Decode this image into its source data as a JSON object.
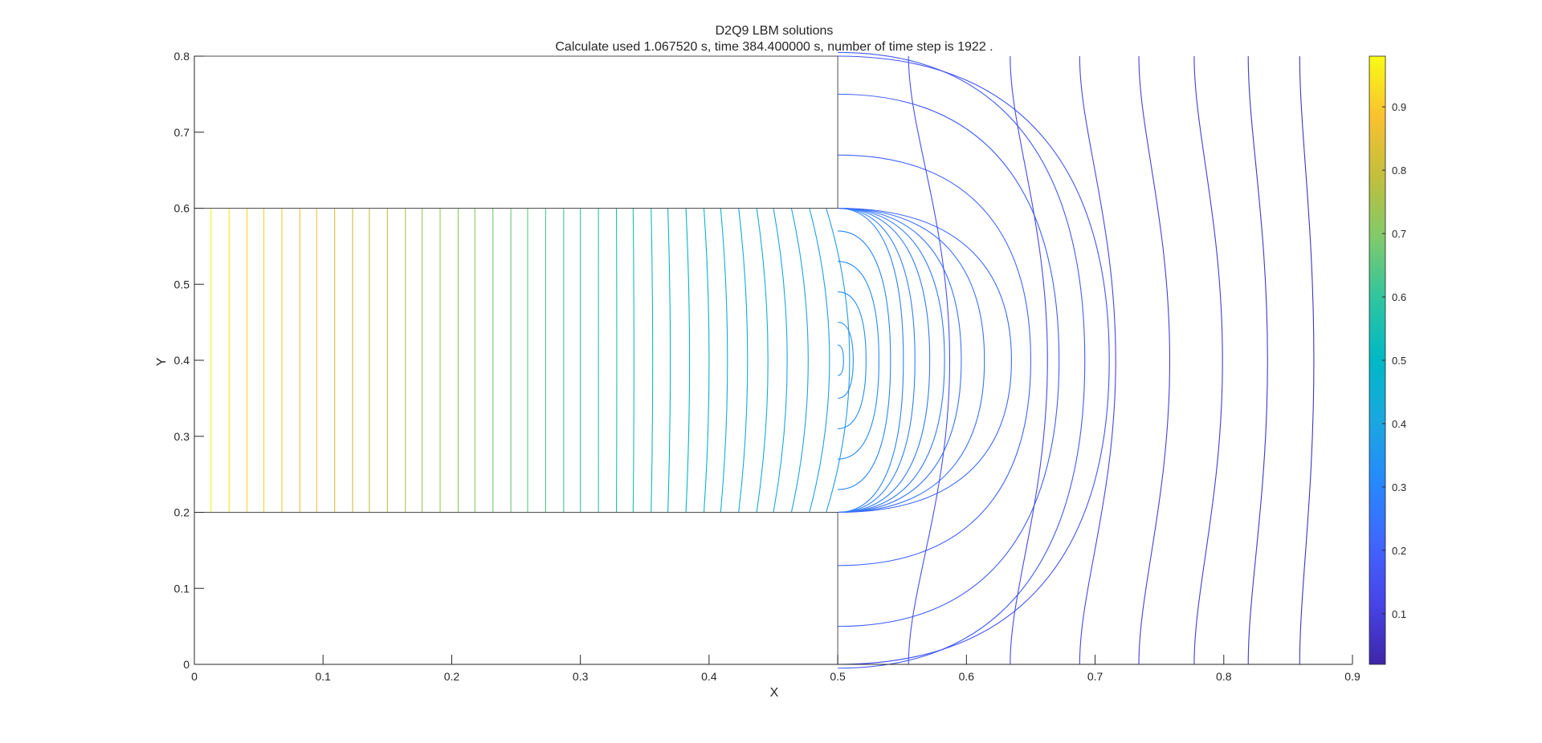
{
  "chart_data": {
    "type": "contour",
    "title": "D2Q9 LBM solutions",
    "subtitle": "Calculate used 1.067520 s, time 384.400000 s, number of time step is 1922 .",
    "xlabel": "X",
    "ylabel": "Y",
    "xlim": [
      0,
      0.9
    ],
    "ylim": [
      0,
      0.8
    ],
    "xticks": [
      "0",
      "0.1",
      "0.2",
      "0.3",
      "0.4",
      "0.5",
      "0.6",
      "0.7",
      "0.8",
      "0.9"
    ],
    "yticks": [
      "0",
      "0.1",
      "0.2",
      "0.3",
      "0.4",
      "0.5",
      "0.6",
      "0.7",
      "0.8"
    ],
    "colorbar": {
      "colormap": "parula",
      "range": [
        0.02,
        0.98
      ],
      "ticks": [
        "0.1",
        "0.2",
        "0.3",
        "0.4",
        "0.5",
        "0.6",
        "0.7",
        "0.8",
        "0.9"
      ]
    },
    "geometry": {
      "blocks": [
        {
          "x": [
            0,
            0.5
          ],
          "y": [
            0.6,
            0.8
          ]
        },
        {
          "x": [
            0,
            0.5
          ],
          "y": [
            0,
            0.2
          ]
        }
      ]
    },
    "channel_levels": [
      {
        "x": 0.013,
        "level": 0.96
      },
      {
        "x": 0.027,
        "level": 0.94
      },
      {
        "x": 0.041,
        "level": 0.92
      },
      {
        "x": 0.054,
        "level": 0.91
      },
      {
        "x": 0.068,
        "level": 0.89
      },
      {
        "x": 0.082,
        "level": 0.87
      },
      {
        "x": 0.095,
        "level": 0.86
      },
      {
        "x": 0.109,
        "level": 0.84
      },
      {
        "x": 0.123,
        "level": 0.82
      },
      {
        "x": 0.136,
        "level": 0.8
      },
      {
        "x": 0.15,
        "level": 0.79
      },
      {
        "x": 0.164,
        "level": 0.77
      },
      {
        "x": 0.177,
        "level": 0.75
      },
      {
        "x": 0.191,
        "level": 0.74
      },
      {
        "x": 0.205,
        "level": 0.72
      },
      {
        "x": 0.218,
        "level": 0.7
      },
      {
        "x": 0.232,
        "level": 0.68
      },
      {
        "x": 0.246,
        "level": 0.67
      },
      {
        "x": 0.259,
        "level": 0.65
      },
      {
        "x": 0.273,
        "level": 0.63
      },
      {
        "x": 0.287,
        "level": 0.62
      },
      {
        "x": 0.3,
        "level": 0.6
      },
      {
        "x": 0.314,
        "level": 0.58
      },
      {
        "x": 0.328,
        "level": 0.56
      },
      {
        "x": 0.341,
        "level": 0.55
      },
      {
        "x": 0.355,
        "level": 0.53
      },
      {
        "x": 0.368,
        "level": 0.51
      },
      {
        "x": 0.382,
        "level": 0.5
      },
      {
        "x": 0.396,
        "level": 0.48
      },
      {
        "x": 0.409,
        "level": 0.46
      },
      {
        "x": 0.423,
        "level": 0.44
      },
      {
        "x": 0.437,
        "level": 0.43
      },
      {
        "x": 0.45,
        "level": 0.41
      },
      {
        "x": 0.464,
        "level": 0.39
      },
      {
        "x": 0.478,
        "level": 0.38
      },
      {
        "x": 0.491,
        "level": 0.36
      }
    ],
    "outlet_contours": [
      {
        "x_center": 0.5045,
        "y_half": 0.02,
        "level": 0.34
      },
      {
        "x_center": 0.512,
        "y_half": 0.05,
        "level": 0.33
      },
      {
        "x_center": 0.522,
        "y_half": 0.09,
        "level": 0.32
      },
      {
        "x_center": 0.532,
        "y_half": 0.13,
        "level": 0.31
      },
      {
        "x_center": 0.541,
        "y_half": 0.17,
        "level": 0.3
      },
      {
        "x_center": 0.551,
        "y_half": 0.2,
        "level": 0.29
      },
      {
        "x_center": 0.56,
        "y_half": 0.2,
        "level": 0.28
      },
      {
        "x_center": 0.5715,
        "y_half": 0.2,
        "level": 0.27
      },
      {
        "x_center": 0.583,
        "y_half": 0.2,
        "level": 0.26
      },
      {
        "x_center": 0.596,
        "y_half": 0.2,
        "level": 0.25
      },
      {
        "x_center": 0.614,
        "y_half": 0.2,
        "level": 0.24
      },
      {
        "x_center": 0.635,
        "y_half": 0.2,
        "level": 0.22
      },
      {
        "x_center": 0.65,
        "y_half": 0.27,
        "level": 0.21
      },
      {
        "x_center": 0.672,
        "y_half": 0.35,
        "level": 0.19
      },
      {
        "x_center": 0.692,
        "y_half": 0.405,
        "level": 0.18
      },
      {
        "x_center": 0.711,
        "y_half": 0.4,
        "level": 0.16
      }
    ],
    "wall_contours": [
      {
        "x_mid": 0.587,
        "x_wall": 0.555,
        "level": 0.15
      },
      {
        "x_mid": 0.663,
        "x_wall": 0.634,
        "level": 0.13
      },
      {
        "x_mid": 0.716,
        "x_wall": 0.688,
        "level": 0.12
      },
      {
        "x_mid": 0.758,
        "x_wall": 0.734,
        "level": 0.1
      },
      {
        "x_mid": 0.799,
        "x_wall": 0.777,
        "level": 0.09
      },
      {
        "x_mid": 0.834,
        "x_wall": 0.819,
        "level": 0.07
      },
      {
        "x_mid": 0.87,
        "x_wall": 0.859,
        "level": 0.06
      }
    ]
  }
}
